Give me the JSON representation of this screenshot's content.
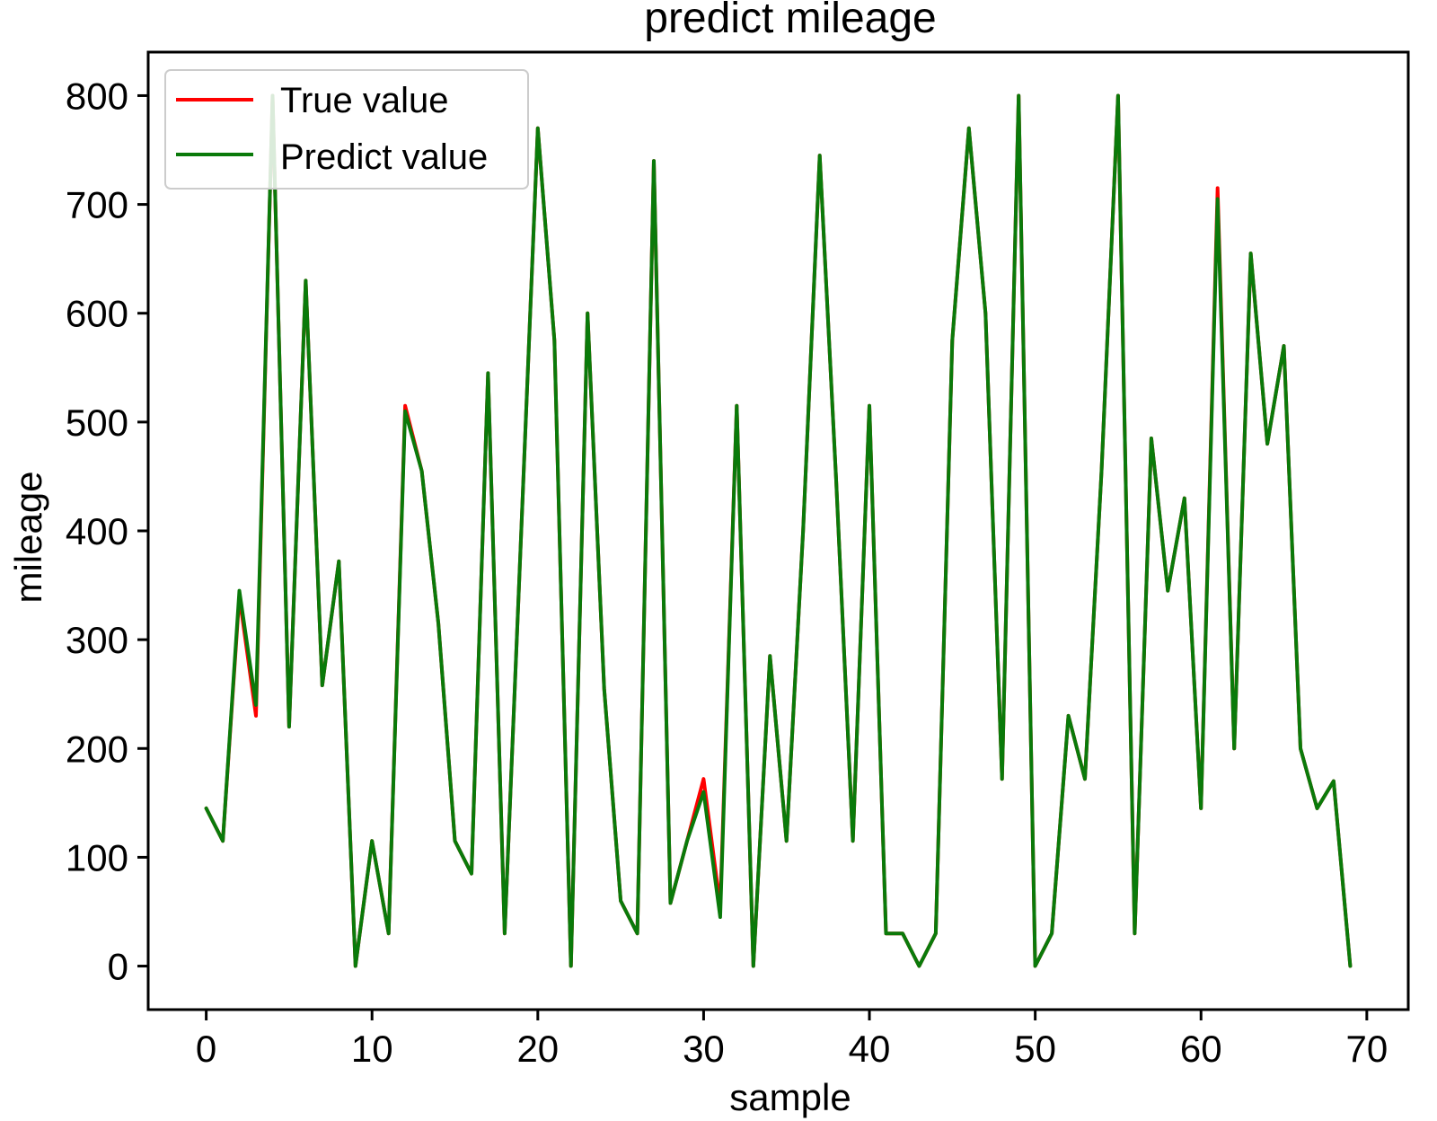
{
  "chart_data": {
    "type": "line",
    "title": "predict mileage",
    "xlabel": "sample",
    "ylabel": "mileage",
    "xlim": [
      -3.5,
      72.5
    ],
    "ylim": [
      -40,
      840
    ],
    "xticks": [
      0,
      10,
      20,
      30,
      40,
      50,
      60,
      70
    ],
    "yticks": [
      0,
      100,
      200,
      300,
      400,
      500,
      600,
      700,
      800
    ],
    "legend_position": "top-left",
    "x": [
      0,
      1,
      2,
      3,
      4,
      5,
      6,
      7,
      8,
      9,
      10,
      11,
      12,
      13,
      14,
      15,
      16,
      17,
      18,
      19,
      20,
      21,
      22,
      23,
      24,
      25,
      26,
      27,
      28,
      29,
      30,
      31,
      32,
      33,
      34,
      35,
      36,
      37,
      38,
      39,
      40,
      41,
      42,
      43,
      44,
      45,
      46,
      47,
      48,
      49,
      50,
      51,
      52,
      53,
      54,
      55,
      56,
      57,
      58,
      59,
      60,
      61,
      62,
      63,
      64,
      65,
      66,
      67,
      68,
      69
    ],
    "series": [
      {
        "name": "True value",
        "color": "#ff0000",
        "values": [
          145,
          115,
          340,
          230,
          800,
          220,
          630,
          258,
          372,
          0,
          115,
          30,
          515,
          455,
          315,
          115,
          85,
          545,
          30,
          400,
          770,
          575,
          0,
          600,
          255,
          60,
          30,
          740,
          58,
          115,
          172,
          55,
          515,
          0,
          285,
          115,
          400,
          745,
          445,
          115,
          515,
          30,
          30,
          0,
          30,
          575,
          770,
          600,
          172,
          800,
          0,
          30,
          230,
          172,
          455,
          800,
          30,
          485,
          345,
          430,
          145,
          715,
          200,
          655,
          480,
          570,
          200,
          145,
          170,
          0
        ]
      },
      {
        "name": "Predict value",
        "color": "#0a7a0a",
        "values": [
          145,
          115,
          345,
          240,
          800,
          220,
          630,
          258,
          372,
          0,
          115,
          30,
          510,
          455,
          315,
          115,
          85,
          545,
          30,
          400,
          770,
          575,
          0,
          600,
          255,
          60,
          30,
          740,
          58,
          115,
          160,
          45,
          515,
          0,
          285,
          115,
          400,
          745,
          445,
          115,
          515,
          30,
          30,
          0,
          30,
          575,
          770,
          600,
          172,
          800,
          0,
          30,
          230,
          172,
          455,
          800,
          30,
          485,
          345,
          430,
          145,
          705,
          200,
          655,
          480,
          570,
          200,
          145,
          170,
          0
        ]
      }
    ]
  }
}
